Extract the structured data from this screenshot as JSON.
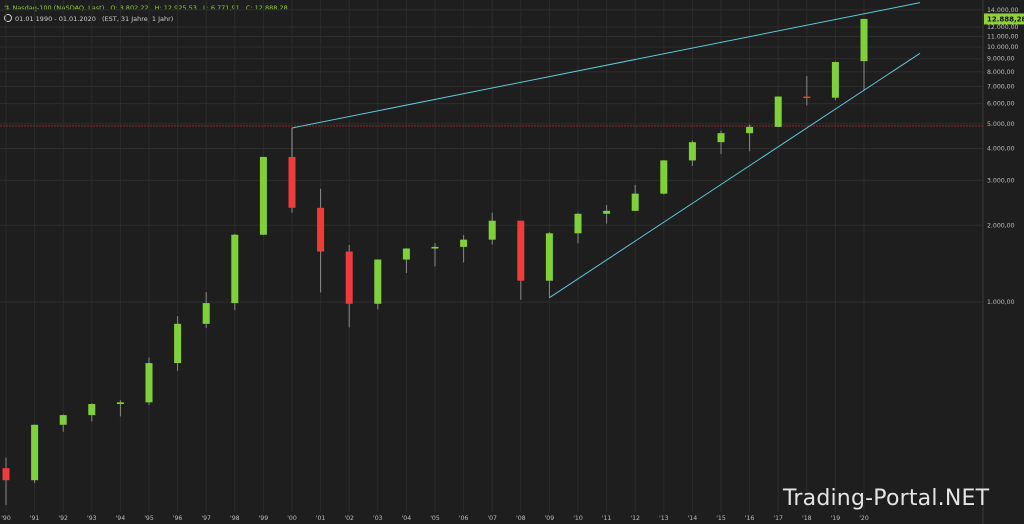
{
  "header": {
    "instrument": "Nasdaq-100 (NASDAQ, Last)",
    "open": "O: 8.802,22",
    "high": "H: 12.925,53",
    "low": "L: 6.771,91",
    "close": "C: 12.888,28",
    "range": "01.01.1990 - 01.01.2020",
    "meta": "(EST, 31 Jahre, 1 Jahr)"
  },
  "watermark": "Trading-Portal.NET",
  "colors": {
    "background": "#1e1e1e",
    "grid": "#2c2c2c",
    "up": "#7fd13b",
    "down": "#ee3b3b",
    "trendline": "#5fc8d8",
    "hline": "#8b2a2a",
    "last_price_box": "#8fd13a"
  },
  "chart_data": {
    "type": "candlestick",
    "y_scale": "log",
    "ylim": [
      150,
      14000
    ],
    "y_ticks": [
      {
        "value": 1000,
        "label": "1.000,00"
      },
      {
        "value": 2000,
        "label": "2.000,00"
      },
      {
        "value": 3000,
        "label": "3.000,00"
      },
      {
        "value": 4000,
        "label": "4.000,00"
      },
      {
        "value": 5000,
        "label": "5.000,00"
      },
      {
        "value": 6000,
        "label": "6.000,00"
      },
      {
        "value": 7000,
        "label": "7.000,00"
      },
      {
        "value": 8000,
        "label": "8.000,00"
      },
      {
        "value": 9000,
        "label": "9.000,00"
      },
      {
        "value": 10000,
        "label": "10.000,00"
      },
      {
        "value": 11000,
        "label": "11.000,00"
      },
      {
        "value": 12000,
        "label": "12.000,00"
      },
      {
        "value": 14000,
        "label": "14.000,00"
      }
    ],
    "last_price": {
      "value": 12888.28,
      "label": "12.888,28"
    },
    "candles": [
      {
        "label": "'90",
        "o": 223,
        "h": 245,
        "l": 160,
        "c": 200
      },
      {
        "label": "'91",
        "o": 200,
        "h": 330,
        "l": 195,
        "c": 330
      },
      {
        "label": "'92",
        "o": 330,
        "h": 362,
        "l": 310,
        "c": 360
      },
      {
        "label": "'93",
        "o": 360,
        "h": 400,
        "l": 340,
        "c": 398
      },
      {
        "label": "'94",
        "o": 398,
        "h": 412,
        "l": 356,
        "c": 404
      },
      {
        "label": "'95",
        "o": 404,
        "h": 606,
        "l": 394,
        "c": 576
      },
      {
        "label": "'96",
        "o": 576,
        "h": 880,
        "l": 537,
        "c": 821
      },
      {
        "label": "'97",
        "o": 821,
        "h": 1092,
        "l": 790,
        "c": 990
      },
      {
        "label": "'98",
        "o": 990,
        "h": 1850,
        "l": 930,
        "c": 1836
      },
      {
        "label": "'99",
        "o": 1836,
        "h": 3710,
        "l": 1830,
        "c": 3707
      },
      {
        "label": "'00",
        "o": 3707,
        "h": 4816,
        "l": 2240,
        "c": 2341
      },
      {
        "label": "'01",
        "o": 2341,
        "h": 2780,
        "l": 1090,
        "c": 1577
      },
      {
        "label": "'02",
        "o": 1577,
        "h": 1675,
        "l": 795,
        "c": 984
      },
      {
        "label": "'03",
        "o": 984,
        "h": 1470,
        "l": 935,
        "c": 1467
      },
      {
        "label": "'04",
        "o": 1467,
        "h": 1625,
        "l": 1300,
        "c": 1621
      },
      {
        "label": "'05",
        "o": 1621,
        "h": 1700,
        "l": 1380,
        "c": 1645
      },
      {
        "label": "'06",
        "o": 1645,
        "h": 1830,
        "l": 1430,
        "c": 1756
      },
      {
        "label": "'07",
        "o": 1756,
        "h": 2240,
        "l": 1680,
        "c": 2084
      },
      {
        "label": "'08",
        "o": 2084,
        "h": 2080,
        "l": 1020,
        "c": 1212
      },
      {
        "label": "'09",
        "o": 1212,
        "h": 1880,
        "l": 1040,
        "c": 1860
      },
      {
        "label": "'10",
        "o": 1860,
        "h": 2240,
        "l": 1700,
        "c": 2218
      },
      {
        "label": "'11",
        "o": 2218,
        "h": 2400,
        "l": 2030,
        "c": 2278
      },
      {
        "label": "'12",
        "o": 2278,
        "h": 2880,
        "l": 2275,
        "c": 2661
      },
      {
        "label": "'13",
        "o": 2661,
        "h": 3600,
        "l": 2640,
        "c": 3592
      },
      {
        "label": "'14",
        "o": 3592,
        "h": 4300,
        "l": 3420,
        "c": 4236
      },
      {
        "label": "'15",
        "o": 4236,
        "h": 4700,
        "l": 3800,
        "c": 4593
      },
      {
        "label": "'16",
        "o": 4593,
        "h": 4970,
        "l": 3900,
        "c": 4863
      },
      {
        "label": "'17",
        "o": 4863,
        "h": 6410,
        "l": 4860,
        "c": 6396
      },
      {
        "label": "'18",
        "o": 6396,
        "h": 7700,
        "l": 5900,
        "c": 6330
      },
      {
        "label": "'19",
        "o": 6330,
        "h": 8780,
        "l": 6190,
        "c": 8733
      },
      {
        "label": "'20",
        "o": 8802.22,
        "h": 12925.53,
        "l": 6771.91,
        "c": 12888.28
      }
    ],
    "hline": {
      "value": 4900
    },
    "trendlines": [
      {
        "from": {
          "label": "'00",
          "value": 4816
        },
        "to": {
          "label": "'20",
          "value": 13500
        },
        "extend": "right"
      },
      {
        "from": {
          "label": "'09",
          "value": 1040
        },
        "to": {
          "label": "'20",
          "value": 6771.91
        },
        "extend": "right"
      }
    ]
  }
}
